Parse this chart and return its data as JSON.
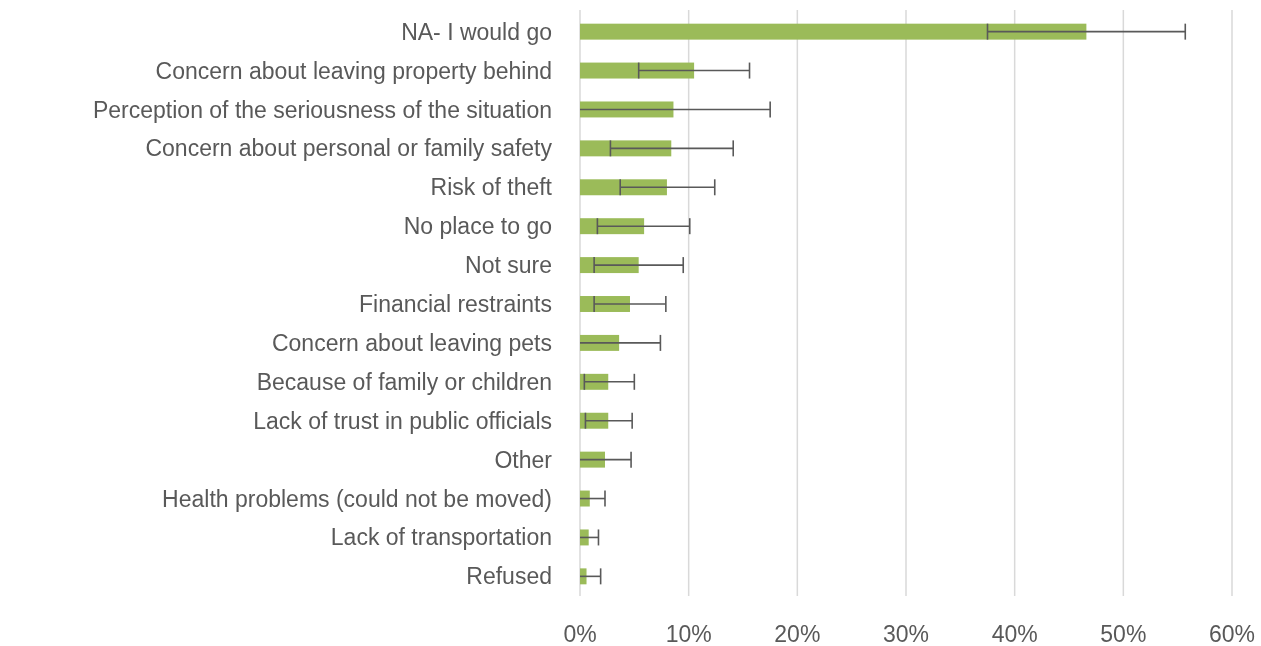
{
  "chart_data": {
    "type": "bar",
    "orientation": "horizontal",
    "categories": [
      "NA- I would go",
      "Concern about leaving property behind",
      "Perception of the seriousness of the situation",
      "Concern about personal or family safety",
      "Risk of theft",
      "No place to go",
      "Not sure",
      "Financial restraints",
      "Concern about leaving pets",
      "Because of family or children",
      "Lack of trust in public officials",
      "Other",
      "Health problems (could not be moved)",
      "Lack of transportation",
      "Refused"
    ],
    "values": [
      46.6,
      10.5,
      8.6,
      8.4,
      8.0,
      5.9,
      5.4,
      4.6,
      3.6,
      2.6,
      2.6,
      2.3,
      0.9,
      0.8,
      0.6
    ],
    "errors": [
      [
        37.5,
        55.7
      ],
      [
        5.4,
        15.6
      ],
      [
        0,
        17.5
      ],
      [
        2.8,
        14.1
      ],
      [
        3.7,
        12.4
      ],
      [
        1.6,
        10.1
      ],
      [
        1.3,
        9.5
      ],
      [
        1.3,
        7.9
      ],
      [
        0,
        7.4
      ],
      [
        0.4,
        5.0
      ],
      [
        0.5,
        4.8
      ],
      [
        0,
        4.7
      ],
      [
        0,
        2.3
      ],
      [
        0,
        1.7
      ],
      [
        0,
        1.9
      ]
    ],
    "color": "#9bbb59",
    "xlim": [
      0,
      60
    ],
    "xticks": [
      {
        "value": 0,
        "label": "0%"
      },
      {
        "value": 10,
        "label": "10%"
      },
      {
        "value": 20,
        "label": "20%"
      },
      {
        "value": 30,
        "label": "30%"
      },
      {
        "value": 40,
        "label": "40%"
      },
      {
        "value": 50,
        "label": "50%"
      },
      {
        "value": 60,
        "label": "60%"
      }
    ],
    "grid": "x"
  }
}
